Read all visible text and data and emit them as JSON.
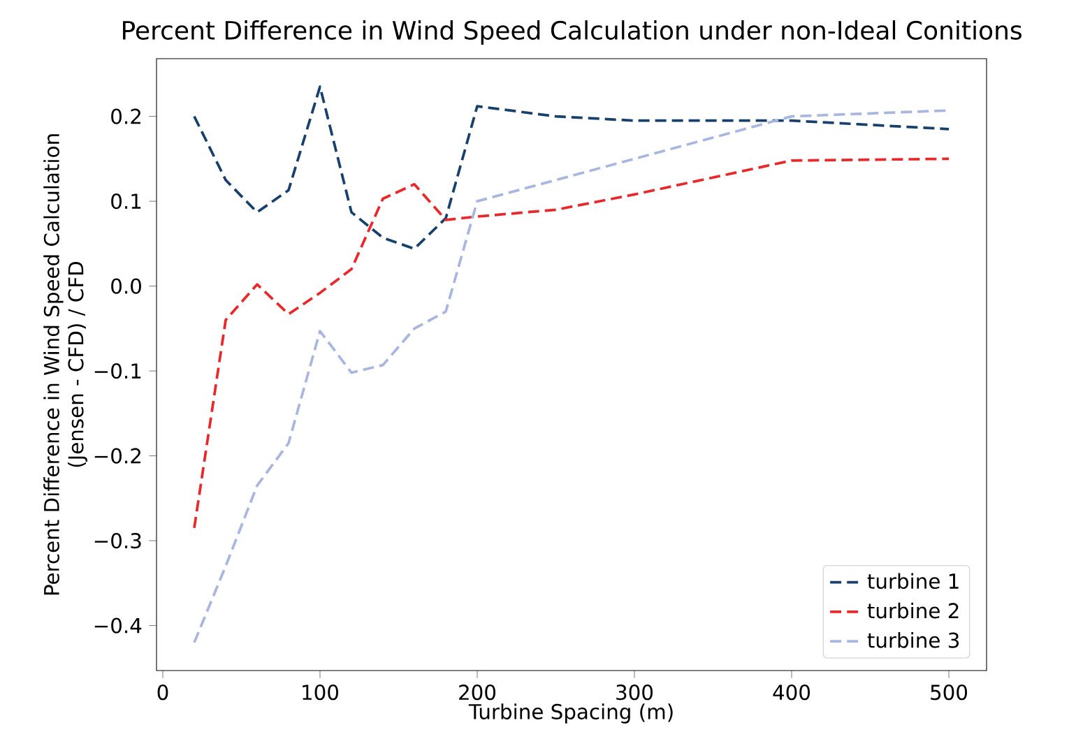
{
  "chart_data": {
    "type": "line",
    "title": "Percent Difference in Wind Speed Calculation under non-Ideal Conitions",
    "xlabel": "Turbine Spacing (m)",
    "ylabel": "Percent Difference in Wind Speed Calculation\n(Jensen - CFD) / CFD",
    "x": [
      20,
      40,
      60,
      80,
      100,
      120,
      140,
      160,
      180,
      200,
      250,
      300,
      400,
      500
    ],
    "series": [
      {
        "name": "turbine 1",
        "color": "#17406d",
        "values": [
          0.2,
          0.125,
          0.087,
          0.113,
          0.235,
          0.087,
          0.057,
          0.044,
          0.08,
          0.212,
          0.2,
          0.195,
          0.195,
          0.185
        ]
      },
      {
        "name": "turbine 2",
        "color": "#e8282b",
        "values": [
          -0.285,
          -0.04,
          0.002,
          -0.033,
          -0.008,
          0.02,
          0.103,
          0.12,
          0.078,
          0.082,
          0.09,
          0.108,
          0.148,
          0.15
        ]
      },
      {
        "name": "turbine 3",
        "color": "#a9b6e0",
        "values": [
          -0.42,
          -0.33,
          -0.235,
          -0.185,
          -0.053,
          -0.102,
          -0.093,
          -0.05,
          -0.03,
          0.1,
          0.125,
          0.15,
          0.2,
          0.207
        ]
      }
    ],
    "xlim": [
      -4,
      524
    ],
    "ylim": [
      -0.453,
      0.268
    ],
    "xticks": [
      0,
      100,
      200,
      300,
      400,
      500
    ],
    "yticks": [
      {
        "value": -0.4,
        "label": "−0.4"
      },
      {
        "value": -0.3,
        "label": "−0.3"
      },
      {
        "value": -0.2,
        "label": "−0.2"
      },
      {
        "value": -0.1,
        "label": "−0.1"
      },
      {
        "value": 0.0,
        "label": "0.0"
      },
      {
        "value": 0.1,
        "label": "0.1"
      },
      {
        "value": 0.2,
        "label": "0.2"
      }
    ],
    "grid": false,
    "legend": "bottom right",
    "line_style": "dashed",
    "marker": "none"
  }
}
